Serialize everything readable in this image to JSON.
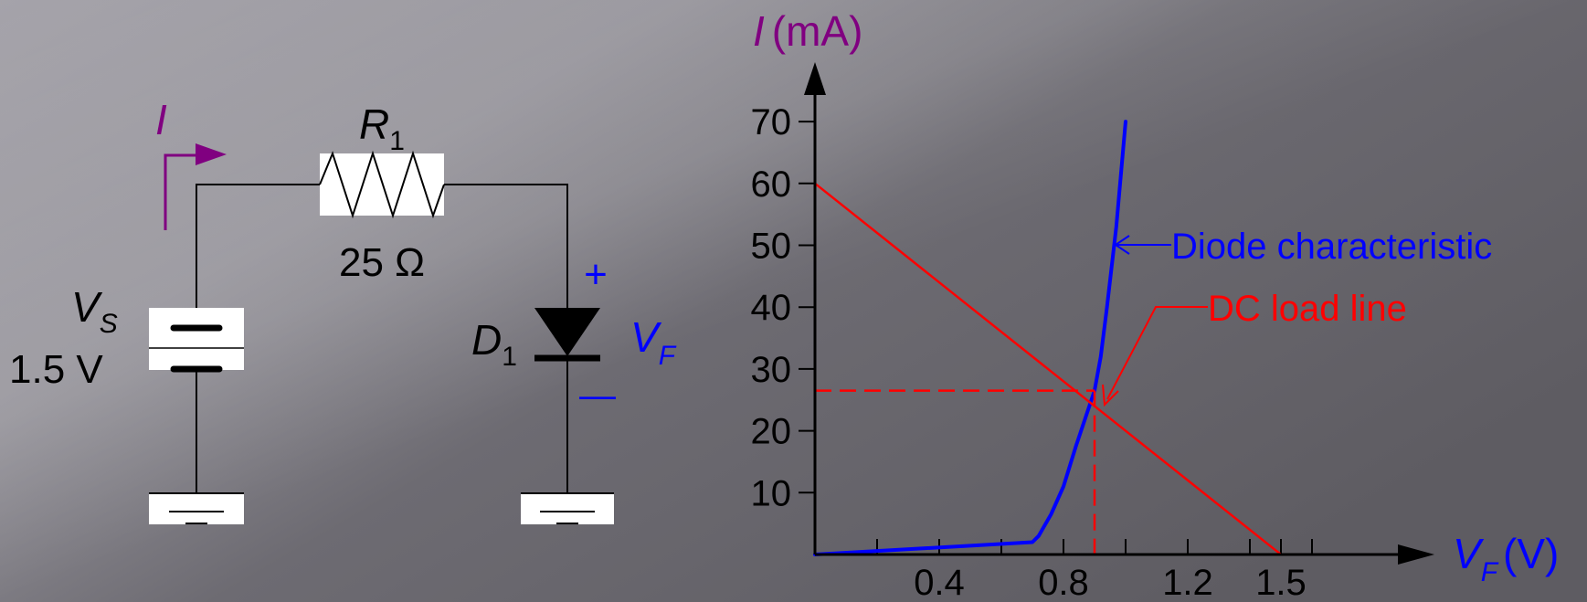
{
  "colors": {
    "purple": "#800080",
    "blue": "#0000FF",
    "red": "#FF0000",
    "black": "#000000",
    "white": "#FFFFFF"
  },
  "circuit": {
    "current_label": "I",
    "resistor": {
      "name": "R",
      "subscript": "1",
      "value": "25 Ω"
    },
    "source": {
      "name": "V",
      "subscript": "S",
      "value": "1.5 V"
    },
    "diode": {
      "name": "D",
      "subscript": "1"
    },
    "forward_voltage": {
      "name": "V",
      "subscript": "F"
    },
    "plus_sign": "+",
    "minus_sign": "—"
  },
  "graph": {
    "y_axis": {
      "symbol": "I",
      "unit": "(mA)"
    },
    "x_axis": {
      "symbol": "V",
      "subscript": "F",
      "unit": "(V)"
    },
    "annotations": {
      "diode": "Diode characteristic",
      "load_line": "DC load line"
    }
  },
  "chart_data": {
    "type": "line",
    "title": "",
    "xlabel": "VF (V)",
    "ylabel": "I (mA)",
    "xlim": [
      0,
      1.8
    ],
    "ylim": [
      0,
      75
    ],
    "x_ticks": [
      0.4,
      0.8,
      1.2,
      1.5
    ],
    "x_ticks_unlabeled": [
      0.2,
      0.6,
      1.0,
      1.4,
      1.6
    ],
    "y_ticks": [
      10,
      20,
      30,
      40,
      50,
      60,
      70
    ],
    "series": [
      {
        "name": "Diode characteristic",
        "color": "#0000FF",
        "x": [
          0,
          0.7,
          0.72,
          0.76,
          0.8,
          0.84,
          0.88,
          0.9,
          0.92,
          0.94,
          0.97,
          1.0
        ],
        "y": [
          0,
          2,
          3,
          6.5,
          11,
          17.5,
          23.5,
          26.5,
          32,
          40,
          53,
          70
        ]
      },
      {
        "name": "DC load line",
        "color": "#FF0000",
        "x": [
          0,
          1.5
        ],
        "y": [
          60,
          0
        ]
      }
    ],
    "operating_point": {
      "x": 0.9,
      "y": 26.5
    },
    "grid": false
  }
}
